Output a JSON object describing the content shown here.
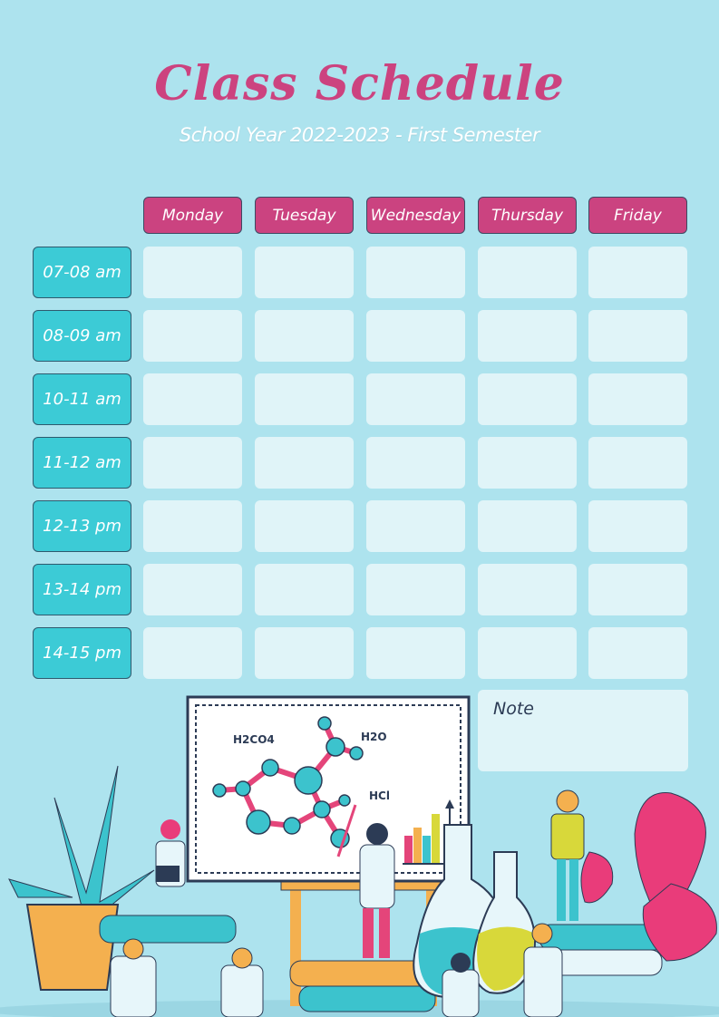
{
  "title": "Class Schedule",
  "subtitle": "School Year 2022-2023 - First Semester",
  "days": [
    "Monday",
    "Tuesday",
    "Wednesday",
    "Thursday",
    "Friday"
  ],
  "times": [
    "07-08 am",
    "08-09 am",
    "10-11 am",
    "11-12 am",
    "12-13 pm",
    "13-14 pm",
    "14-15 pm"
  ],
  "note_label": "Note",
  "board": {
    "formula1": "H2CO4",
    "formula2": "H2O",
    "formula3": "HCl"
  },
  "colors": {
    "background": "#ade3ee",
    "accent": "#cb4380",
    "time": "#3ccbd6",
    "cell": "#e0f4f8"
  }
}
